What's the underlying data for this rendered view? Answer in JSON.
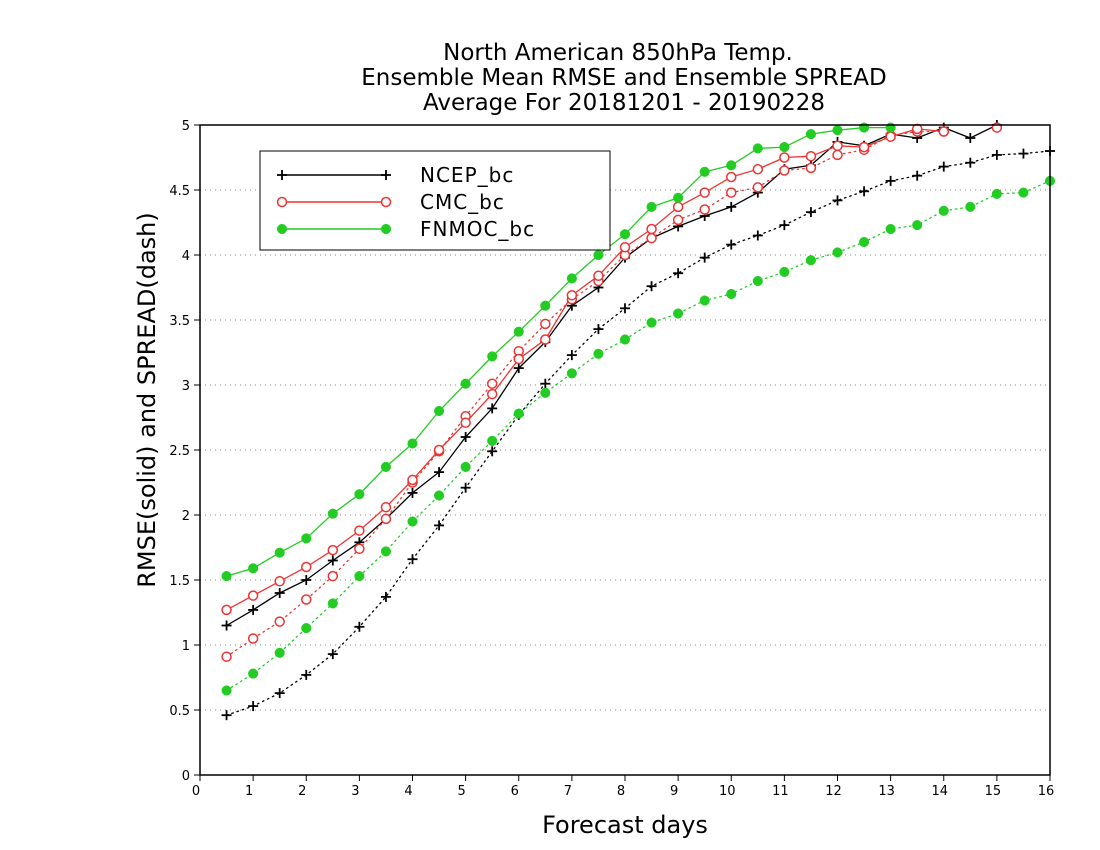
{
  "chart_data": {
    "type": "line",
    "title_lines": [
      "North American 850hPa Temp.",
      "Ensemble Mean RMSE and Ensemble SPREAD",
      "Average For 20181201 - 20190228"
    ],
    "xlabel": "Forecast days",
    "ylabel": "RMSE(solid) and SPREAD(dash)",
    "xlim": [
      0,
      16
    ],
    "ylim": [
      0,
      5
    ],
    "x_ticks": [
      0,
      1,
      2,
      3,
      4,
      5,
      6,
      7,
      8,
      9,
      10,
      11,
      12,
      13,
      14,
      15,
      16
    ],
    "y_ticks": [
      0,
      0.5,
      1,
      1.5,
      2,
      2.5,
      3,
      3.5,
      4,
      4.5,
      5
    ],
    "grid": "horizontal dotted",
    "legend_position": "top-left",
    "x": [
      0.5,
      1,
      1.5,
      2,
      2.5,
      3,
      3.5,
      4,
      4.5,
      5,
      5.5,
      6,
      6.5,
      7,
      7.5,
      8,
      8.5,
      9,
      9.5,
      10,
      10.5,
      11,
      11.5,
      12,
      12.5,
      13,
      13.5,
      14,
      14.5,
      15,
      15.5,
      16
    ],
    "series": [
      {
        "name": "NCEP_bc",
        "color": "#000000",
        "marker": "plus",
        "rmse": [
          1.15,
          1.27,
          1.4,
          1.5,
          1.65,
          1.79,
          1.97,
          2.17,
          2.33,
          2.6,
          2.82,
          3.13,
          3.33,
          3.61,
          3.75,
          3.98,
          4.13,
          4.22,
          4.3,
          4.37,
          4.48,
          4.66,
          4.69,
          4.87,
          4.84,
          4.93,
          4.9,
          4.98,
          4.9,
          5.0,
          null,
          null
        ],
        "spread": [
          0.46,
          0.53,
          0.63,
          0.77,
          0.93,
          1.14,
          1.37,
          1.66,
          1.92,
          2.21,
          2.49,
          2.77,
          3.01,
          3.23,
          3.43,
          3.59,
          3.76,
          3.86,
          3.98,
          4.08,
          4.15,
          4.23,
          4.33,
          4.42,
          4.49,
          4.57,
          4.61,
          4.68,
          4.71,
          4.77,
          4.78,
          4.8
        ]
      },
      {
        "name": "CMC_bc",
        "color": "#ee3333",
        "marker": "open-circle",
        "rmse": [
          1.27,
          1.38,
          1.49,
          1.6,
          1.73,
          1.88,
          2.06,
          2.27,
          2.5,
          2.71,
          2.93,
          3.2,
          3.35,
          3.69,
          3.84,
          4.06,
          4.2,
          4.37,
          4.48,
          4.6,
          4.66,
          4.75,
          4.76,
          4.84,
          4.83,
          4.91,
          4.97,
          4.95,
          null,
          4.98,
          null,
          null
        ],
        "spread": [
          0.91,
          1.05,
          1.18,
          1.35,
          1.53,
          1.74,
          1.97,
          2.25,
          2.49,
          2.76,
          3.01,
          3.26,
          3.47,
          3.66,
          3.8,
          4.0,
          4.13,
          4.27,
          4.35,
          4.48,
          4.52,
          4.65,
          4.67,
          4.77,
          4.81,
          4.92,
          4.95,
          4.95,
          null,
          null,
          null,
          null
        ]
      },
      {
        "name": "FNMOC_bc",
        "color": "#22cc22",
        "marker": "filled-circle",
        "rmse": [
          1.53,
          1.59,
          1.71,
          1.82,
          2.01,
          2.16,
          2.37,
          2.55,
          2.8,
          3.01,
          3.22,
          3.41,
          3.61,
          3.82,
          4.0,
          4.16,
          4.37,
          4.44,
          4.64,
          4.69,
          4.82,
          4.83,
          4.93,
          4.96,
          4.98,
          4.98,
          null,
          null,
          null,
          null,
          null,
          null
        ],
        "spread": [
          0.65,
          0.78,
          0.94,
          1.13,
          1.32,
          1.53,
          1.72,
          1.95,
          2.15,
          2.37,
          2.57,
          2.78,
          2.94,
          3.09,
          3.24,
          3.35,
          3.48,
          3.55,
          3.65,
          3.7,
          3.8,
          3.87,
          3.96,
          4.02,
          4.1,
          4.2,
          4.23,
          4.34,
          4.37,
          4.47,
          4.48,
          4.57
        ]
      }
    ]
  }
}
